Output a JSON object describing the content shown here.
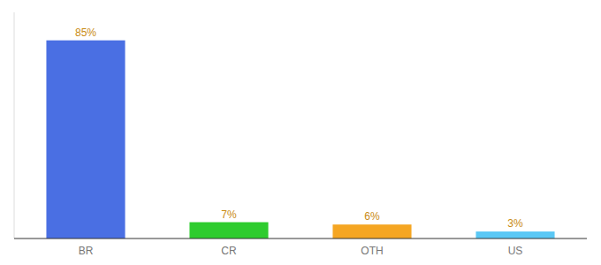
{
  "chart_data": {
    "type": "bar",
    "categories": [
      "BR",
      "CR",
      "OTH",
      "US"
    ],
    "values": [
      85,
      7,
      6,
      3
    ],
    "value_labels": [
      "85%",
      "7%",
      "6%",
      "3%"
    ],
    "colors": [
      "#4A6FE3",
      "#2ECC2E",
      "#F5A623",
      "#5BC8F5"
    ],
    "ylim": [
      0,
      97
    ],
    "data_labels": true,
    "tick_labels": "x"
  }
}
